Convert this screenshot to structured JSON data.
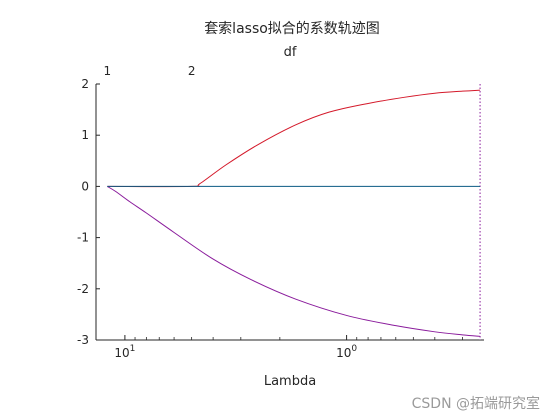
{
  "chart_data": {
    "type": "line",
    "title": "套索lasso拟合的系数轨迹图",
    "top_axis_label": "df",
    "top_ticks": [
      {
        "label": "1",
        "lambda": 12.0
      },
      {
        "label": "2",
        "lambda": 5.0
      }
    ],
    "xlabel": "Lambda",
    "x_scale": "log",
    "x_reversed": true,
    "xlim": [
      13.5,
      0.24
    ],
    "x_ticks": [
      {
        "base": "10",
        "exp": "1",
        "value": 10
      },
      {
        "base": "10",
        "exp": "0",
        "value": 1
      }
    ],
    "ylabel": "",
    "ylim": [
      -3,
      2
    ],
    "y_ticks": [
      "2",
      "1",
      "0",
      "-1",
      "-2",
      "-3"
    ],
    "y_tick_values": [
      2,
      1,
      0,
      -1,
      -2,
      -3
    ],
    "grid": false,
    "vline_lambda": 0.25,
    "series": [
      {
        "color": "#d4192a",
        "points": [
          [
            12.0,
            0
          ],
          [
            5.0,
            0
          ],
          [
            4.6,
            0.05
          ],
          [
            3.5,
            0.42
          ],
          [
            2.5,
            0.82
          ],
          [
            1.7,
            1.2
          ],
          [
            1.2,
            1.45
          ],
          [
            0.8,
            1.62
          ],
          [
            0.55,
            1.74
          ],
          [
            0.4,
            1.82
          ],
          [
            0.3,
            1.86
          ],
          [
            0.25,
            1.88
          ]
        ]
      },
      {
        "color": "#8a1c9c",
        "points": [
          [
            12.0,
            0
          ],
          [
            11.0,
            -0.1
          ],
          [
            9.5,
            -0.3
          ],
          [
            8.0,
            -0.52
          ],
          [
            6.0,
            -0.9
          ],
          [
            4.0,
            -1.42
          ],
          [
            2.7,
            -1.82
          ],
          [
            1.7,
            -2.2
          ],
          [
            1.0,
            -2.52
          ],
          [
            0.6,
            -2.72
          ],
          [
            0.4,
            -2.84
          ],
          [
            0.3,
            -2.9
          ],
          [
            0.25,
            -2.93
          ]
        ]
      },
      {
        "color": "#0a5a82",
        "points": [
          [
            12.0,
            0
          ],
          [
            0.25,
            0
          ]
        ]
      }
    ]
  },
  "watermark": "CSDN @拓端研究室",
  "colors": {
    "axis": "#262626",
    "vline": "#8a1c9c",
    "background": "#ffffff"
  }
}
